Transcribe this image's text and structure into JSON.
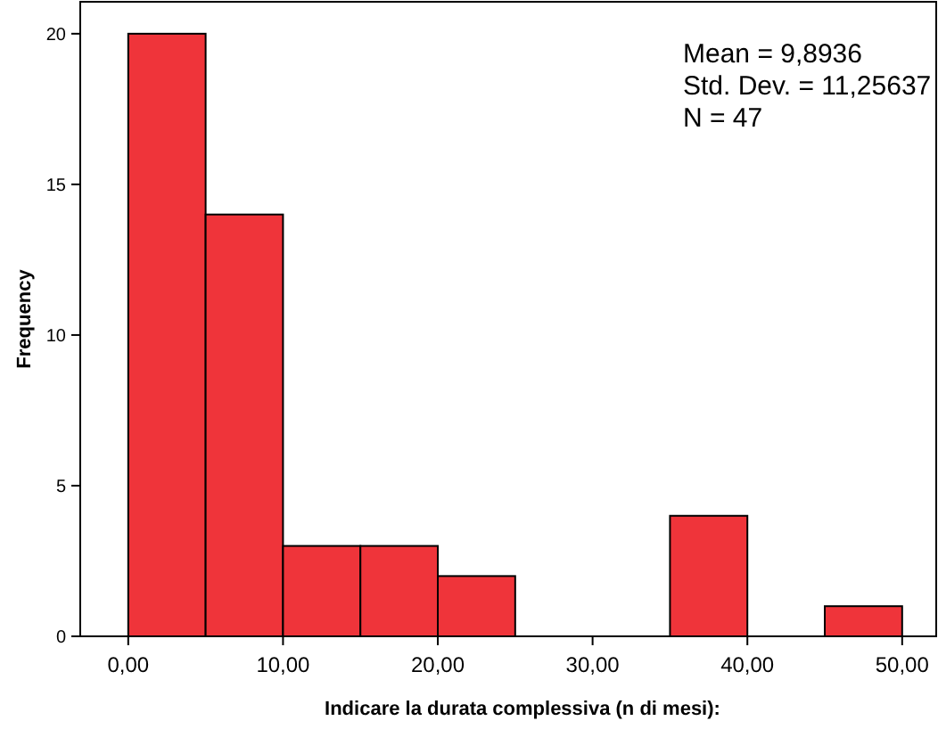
{
  "chart_data": {
    "type": "histogram",
    "xlabel": "Indicare la durata complessiva (n di mesi):",
    "ylabel": "Frequency",
    "bins": [
      0,
      5,
      10,
      15,
      20,
      25,
      30,
      35,
      40,
      45,
      50
    ],
    "values": [
      20,
      14,
      3,
      3,
      2,
      0,
      0,
      4,
      0,
      1
    ],
    "color": "#ef343a",
    "xlim": [
      -3.1,
      52.2
    ],
    "ylim": [
      0,
      21.06
    ],
    "xticks": [
      {
        "value": 0,
        "label": "0,00"
      },
      {
        "value": 10,
        "label": "10,00"
      },
      {
        "value": 20,
        "label": "20,00"
      },
      {
        "value": 30,
        "label": "30,00"
      },
      {
        "value": 40,
        "label": "40,00"
      },
      {
        "value": 50,
        "label": "50,00"
      }
    ],
    "yticks": [
      0,
      5,
      10,
      15,
      20
    ],
    "grid": false,
    "annotations": [
      "Mean = 9,8936",
      "Std. Dev. = 11,25637",
      "N = 47"
    ]
  }
}
